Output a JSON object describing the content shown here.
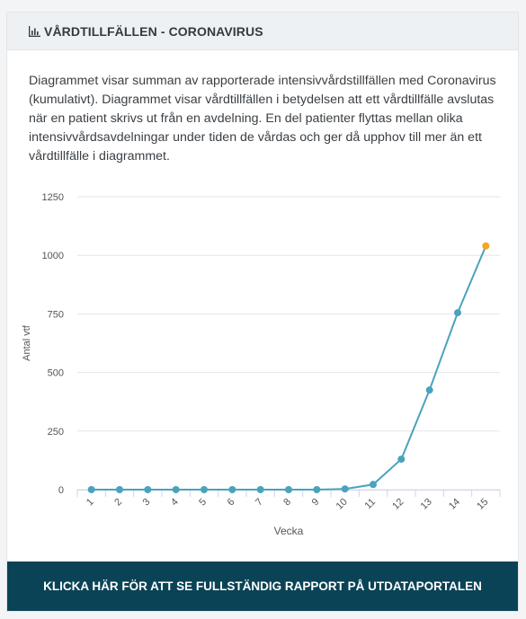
{
  "header": {
    "title": "VÅRDTILLFÄLLEN - CORONAVIRUS",
    "icon": "bar-chart-icon"
  },
  "description": "Diagrammet visar summan av rapporterade intensivvårdstillfällen med Coronavirus (kumulativt). Diagrammet visar vårdtillfällen i betydelsen att ett vårdtillfälle avslutas när en patient skrivs ut från en avdelning. En del patienter flyttas mellan olika intensivvårdsavdelningar under tiden de vårdas och ger då upphov till mer än ett vårdtillfälle i diagrammet.",
  "chart_data": {
    "type": "line",
    "title": "",
    "xlabel": "Vecka",
    "ylabel": "Antal vtf",
    "categories": [
      "1",
      "2",
      "3",
      "4",
      "5",
      "6",
      "7",
      "8",
      "9",
      "10",
      "11",
      "12",
      "13",
      "14",
      "15"
    ],
    "series": [
      {
        "values": [
          0,
          0,
          0,
          0,
          0,
          0,
          0,
          0,
          0,
          3,
          22,
          130,
          425,
          755,
          1040
        ],
        "color": "#4aa3bd",
        "highlight_last_color": "#f5a623"
      }
    ],
    "yticks": [
      0,
      250,
      500,
      750,
      1000,
      1250
    ],
    "ylim": [
      0,
      1250
    ],
    "grid": true,
    "legend": "none"
  },
  "footer": {
    "button_label": "KLICKA HÄR FÖR ATT SE FULLSTÄNDIG RAPPORT PÅ UTDATAPORTALEN"
  }
}
